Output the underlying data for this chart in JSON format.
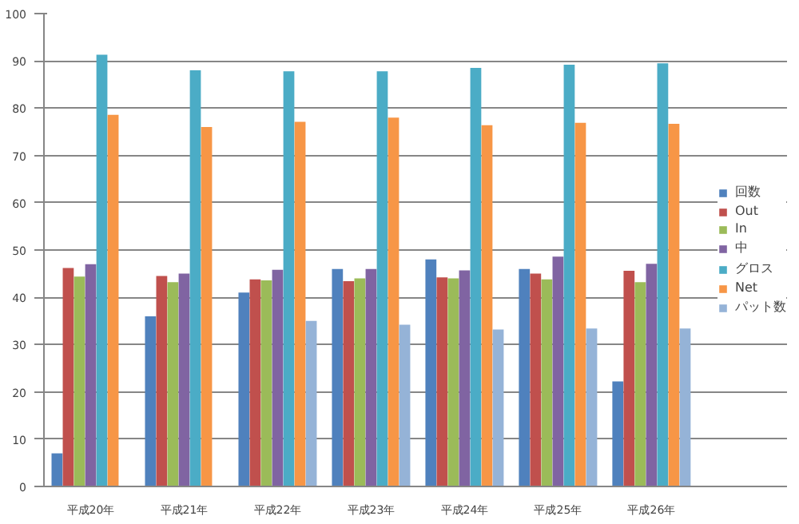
{
  "chart_data": {
    "type": "bar",
    "categories": [
      "平成20年",
      "平成21年",
      "平成22年",
      "平成23年",
      "平成24年",
      "平成25年",
      "平成26年"
    ],
    "series": [
      {
        "name": "回数",
        "color": "#4f81bd",
        "values": [
          7,
          36,
          41,
          46,
          48,
          46,
          22.2
        ]
      },
      {
        "name": "Out",
        "color": "#c0504d",
        "values": [
          46.2,
          44.5,
          43.8,
          43.4,
          44.2,
          45,
          45.6
        ]
      },
      {
        "name": "In",
        "color": "#9bbb59",
        "values": [
          44.4,
          43.2,
          43.6,
          44,
          44,
          43.8,
          43.2
        ]
      },
      {
        "name": "中",
        "color": "#8064a2",
        "values": [
          47,
          45,
          45.8,
          46,
          45.7,
          48.6,
          47.1
        ]
      },
      {
        "name": "グロス",
        "color": "#4bacc6",
        "values": [
          91.3,
          88,
          87.8,
          87.8,
          88.5,
          89.2,
          89.5
        ]
      },
      {
        "name": "Net",
        "color": "#f79646",
        "values": [
          78.6,
          76,
          77.1,
          78,
          76.4,
          76.9,
          76.7
        ]
      },
      {
        "name": "パット数",
        "color": "#95b3d7",
        "values": [
          null,
          null,
          35,
          34.2,
          33.2,
          33.4,
          33.4
        ]
      }
    ],
    "ylim": [
      0,
      100
    ],
    "yticks": [
      0,
      10,
      20,
      30,
      40,
      50,
      60,
      70,
      80,
      90,
      100
    ],
    "grid": "y",
    "legend": "right"
  }
}
